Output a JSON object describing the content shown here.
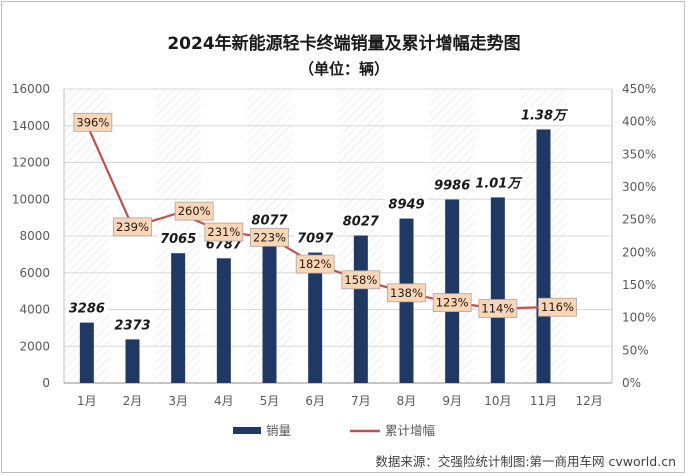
{
  "chart_data": {
    "type": "bar+line",
    "title": "2024年新能源轻卡终端销量及累计增幅走势图",
    "subtitle": "（单位：辆）",
    "categories": [
      "1月",
      "2月",
      "3月",
      "4月",
      "5月",
      "6月",
      "7月",
      "8月",
      "9月",
      "10月",
      "11月",
      "12月"
    ],
    "series": [
      {
        "name": "销量",
        "type": "bar",
        "axis": "left",
        "color": "#1f3864",
        "values": [
          3286,
          2373,
          7065,
          6787,
          8077,
          7097,
          8027,
          8949,
          9986,
          10100,
          13800,
          null
        ],
        "labels": [
          "3286",
          "2373",
          "7065",
          "6787",
          "8077",
          "7097",
          "8027",
          "8949",
          "9986",
          "1.01万",
          "1.38万",
          ""
        ]
      },
      {
        "name": "累计增幅",
        "type": "line",
        "axis": "right",
        "color": "#c0504d",
        "values": [
          396,
          239,
          260,
          231,
          223,
          182,
          158,
          138,
          123,
          114,
          116,
          null
        ],
        "labels": [
          "396%",
          "239%",
          "260%",
          "231%",
          "223%",
          "182%",
          "158%",
          "138%",
          "123%",
          "114%",
          "116%",
          ""
        ]
      }
    ],
    "y_left": {
      "min": 0,
      "max": 16000,
      "step": 2000,
      "ticks": [
        "0",
        "2000",
        "4000",
        "6000",
        "8000",
        "10000",
        "12000",
        "14000",
        "16000"
      ]
    },
    "y_right": {
      "min": 0,
      "max": 450,
      "step": 50,
      "ticks": [
        "0%",
        "50%",
        "100%",
        "150%",
        "200%",
        "250%",
        "300%",
        "350%",
        "400%",
        "450%"
      ]
    },
    "legend_position": "bottom",
    "source": "数据来源：交强险统计制图:第一商用车网 cvworld.cn"
  }
}
